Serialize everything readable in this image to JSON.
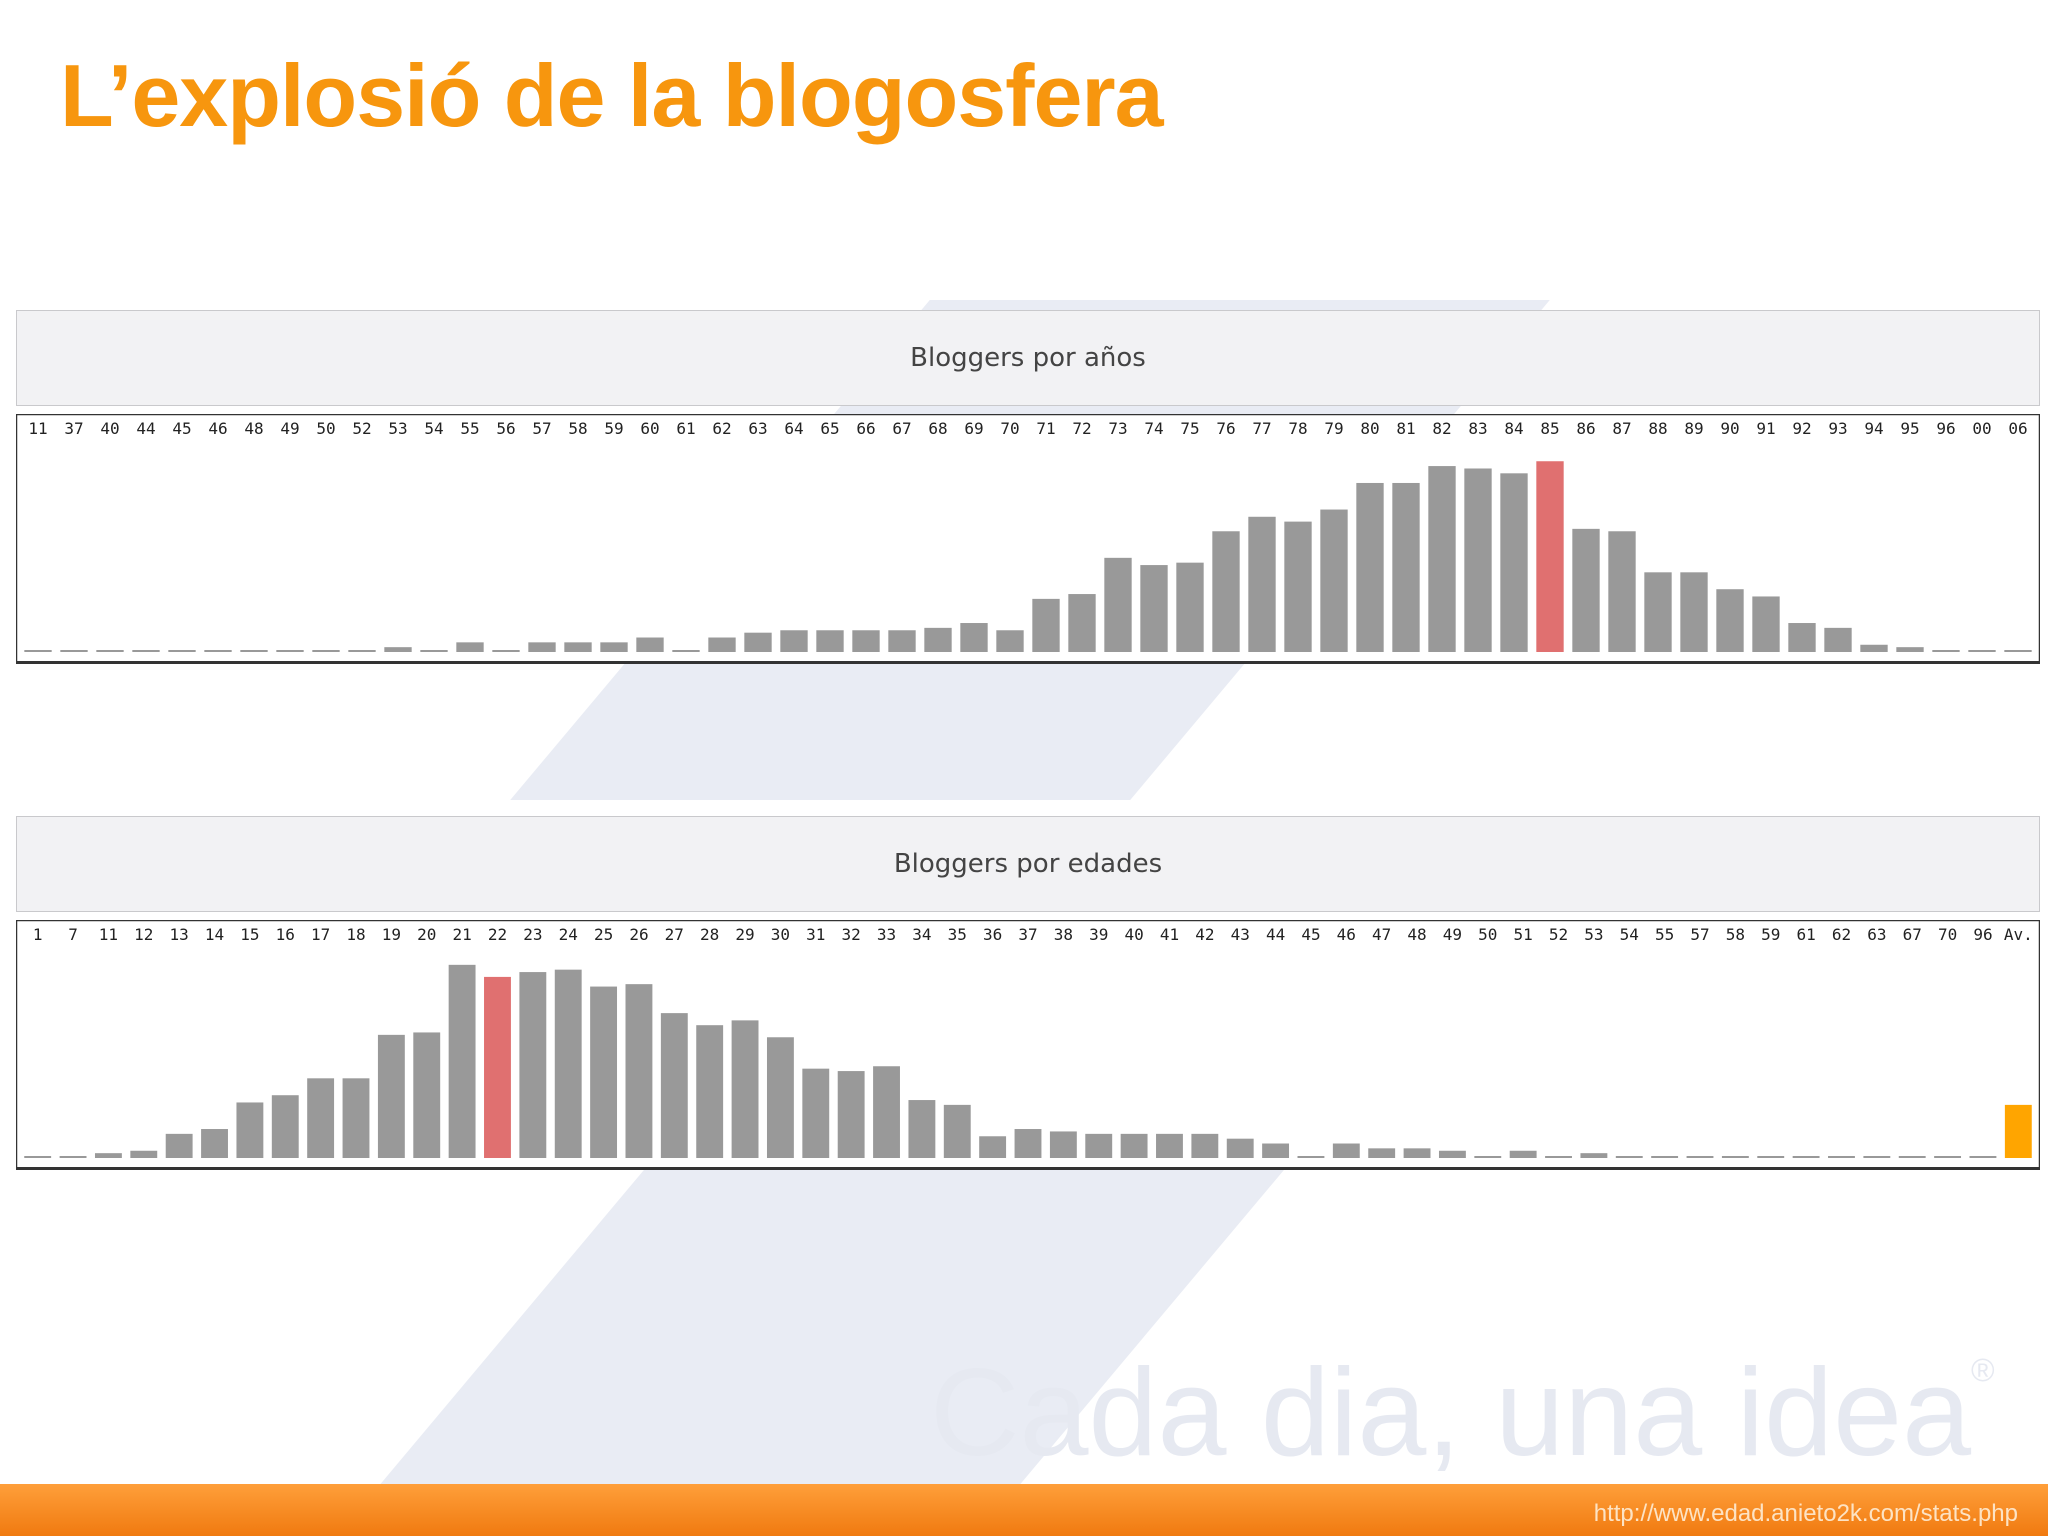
{
  "slide": {
    "title": "L’explosió de la blogosfera",
    "watermark": "Cada dia, una idea",
    "watermark_mark": "®",
    "footer_url": "http://www.edad.anieto2k.com/stats.php"
  },
  "colors": {
    "title": "#f7960e",
    "bar": "#999999",
    "highlight": "#e07070",
    "average": "#ffa500",
    "footer": "#f58220"
  },
  "chart_data": [
    {
      "type": "bar",
      "title": "Bloggers por años",
      "categories": [
        "11",
        "37",
        "40",
        "44",
        "45",
        "46",
        "48",
        "49",
        "50",
        "52",
        "53",
        "54",
        "55",
        "56",
        "57",
        "58",
        "59",
        "60",
        "61",
        "62",
        "63",
        "64",
        "65",
        "66",
        "67",
        "68",
        "69",
        "70",
        "71",
        "72",
        "73",
        "74",
        "75",
        "76",
        "77",
        "78",
        "79",
        "80",
        "81",
        "82",
        "83",
        "84",
        "85",
        "86",
        "87",
        "88",
        "89",
        "90",
        "91",
        "92",
        "93",
        "94",
        "95",
        "96",
        "00",
        "06"
      ],
      "values": [
        0,
        0,
        0,
        0,
        0,
        0,
        0,
        0,
        0,
        0,
        2,
        0,
        4,
        0,
        4,
        4,
        4,
        6,
        0,
        6,
        8,
        9,
        9,
        9,
        9,
        10,
        12,
        9,
        22,
        24,
        39,
        36,
        37,
        50,
        56,
        54,
        59,
        70,
        70,
        77,
        76,
        74,
        79,
        51,
        50,
        33,
        33,
        26,
        23,
        12,
        10,
        3,
        2,
        0,
        0,
        0
      ],
      "highlight_index": 42,
      "ylim": [
        0,
        82
      ]
    },
    {
      "type": "bar",
      "title": "Bloggers por edades",
      "categories": [
        "1",
        "7",
        "11",
        "12",
        "13",
        "14",
        "15",
        "16",
        "17",
        "18",
        "19",
        "20",
        "21",
        "22",
        "23",
        "24",
        "25",
        "26",
        "27",
        "28",
        "29",
        "30",
        "31",
        "32",
        "33",
        "34",
        "35",
        "36",
        "37",
        "38",
        "39",
        "40",
        "41",
        "42",
        "43",
        "44",
        "45",
        "46",
        "47",
        "48",
        "49",
        "50",
        "51",
        "52",
        "53",
        "54",
        "55",
        "57",
        "58",
        "59",
        "61",
        "62",
        "63",
        "67",
        "70",
        "96",
        "Av."
      ],
      "values": [
        0,
        0,
        2,
        3,
        10,
        12,
        23,
        26,
        33,
        33,
        51,
        52,
        80,
        75,
        77,
        78,
        71,
        72,
        60,
        55,
        57,
        50,
        37,
        36,
        38,
        24,
        22,
        9,
        12,
        11,
        10,
        10,
        10,
        10,
        8,
        6,
        0,
        6,
        4,
        4,
        3,
        0,
        3,
        0,
        2,
        0,
        0,
        0,
        0,
        0,
        0,
        0,
        0,
        0,
        0,
        0,
        22
      ],
      "highlight_index": 13,
      "average_index": 56,
      "ylim": [
        0,
        82
      ]
    }
  ]
}
